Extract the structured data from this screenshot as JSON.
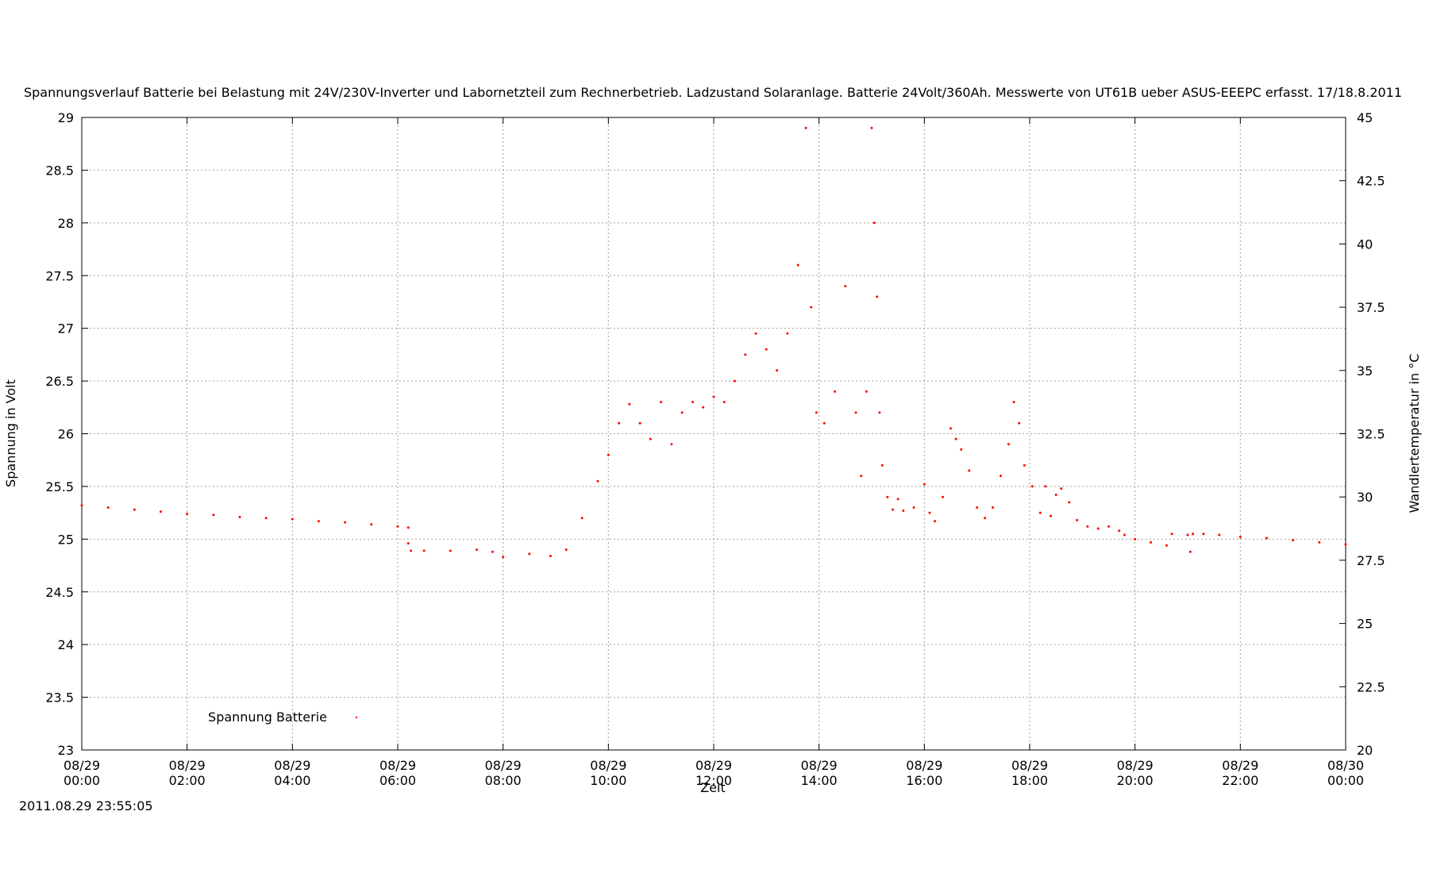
{
  "chart_data": {
    "type": "scatter",
    "title": "Spannungsverlauf Batterie bei Belastung mit 24V/230V-Inverter und Labornetzteil zum Rechnerbetrieb. Ladzustand Solaranlage. Batterie 24Volt/360Ah. Messwerte von UT61B ueber ASUS-EEEPC erfasst. 17/18.8.2011",
    "xlabel": "Zeit",
    "ylabel": "Spannung in Volt",
    "y2label": "Wandlertemperatur in °C",
    "xlim": [
      0,
      24
    ],
    "ylim": [
      23,
      29
    ],
    "y2lim": [
      20,
      45
    ],
    "grid": true,
    "legend_position": "bottom-left",
    "x_ticks": [
      {
        "date": "08/29",
        "time": "00:00"
      },
      {
        "date": "08/29",
        "time": "02:00"
      },
      {
        "date": "08/29",
        "time": "04:00"
      },
      {
        "date": "08/29",
        "time": "06:00"
      },
      {
        "date": "08/29",
        "time": "08:00"
      },
      {
        "date": "08/29",
        "time": "10:00"
      },
      {
        "date": "08/29",
        "time": "12:00"
      },
      {
        "date": "08/29",
        "time": "14:00"
      },
      {
        "date": "08/29",
        "time": "16:00"
      },
      {
        "date": "08/29",
        "time": "18:00"
      },
      {
        "date": "08/29",
        "time": "20:00"
      },
      {
        "date": "08/29",
        "time": "22:00"
      },
      {
        "date": "08/30",
        "time": "00:00"
      }
    ],
    "y_ticks": [
      "23",
      "23.5",
      "24",
      "24.5",
      "25",
      "25.5",
      "26",
      "26.5",
      "27",
      "27.5",
      "28",
      "28.5",
      "29"
    ],
    "y2_ticks": [
      "20",
      "22.5",
      "25",
      "27.5",
      "30",
      "32.5",
      "35",
      "37.5",
      "40",
      "42.5",
      "45"
    ],
    "series": [
      {
        "name": "Spannung Batterie",
        "color": "#ff0000",
        "x": [
          0.0,
          0.5,
          1.0,
          1.5,
          2.0,
          2.5,
          3.0,
          3.5,
          4.0,
          4.5,
          5.0,
          5.5,
          6.0,
          6.2,
          6.2,
          6.25,
          6.5,
          7.0,
          7.5,
          7.8,
          8.0,
          8.5,
          8.9,
          9.2,
          9.5,
          9.8,
          10.0,
          10.2,
          10.4,
          10.6,
          10.8,
          11.0,
          11.2,
          11.4,
          11.6,
          11.8,
          12.0,
          12.2,
          12.4,
          12.6,
          12.8,
          13.0,
          13.2,
          13.4,
          13.6,
          13.75,
          13.85,
          13.95,
          14.1,
          14.3,
          14.5,
          14.7,
          14.8,
          14.9,
          15.0,
          15.05,
          15.1,
          15.15,
          15.2,
          15.3,
          15.4,
          15.5,
          15.6,
          15.8,
          16.0,
          16.1,
          16.2,
          16.35,
          16.5,
          16.6,
          16.7,
          16.85,
          17.0,
          17.15,
          17.3,
          17.45,
          17.6,
          17.7,
          17.8,
          17.9,
          18.05,
          18.2,
          18.3,
          18.4,
          18.5,
          18.6,
          18.75,
          18.9,
          19.1,
          19.3,
          19.5,
          19.7,
          19.8,
          20.0,
          20.3,
          20.6,
          20.7,
          21.0,
          21.05,
          21.1,
          21.3,
          21.6,
          22.0,
          22.5,
          23.0,
          23.5,
          24.0
        ],
        "y": [
          25.32,
          25.3,
          25.28,
          25.26,
          25.24,
          25.23,
          25.21,
          25.2,
          25.19,
          25.17,
          25.16,
          25.14,
          25.12,
          25.11,
          24.96,
          24.89,
          24.89,
          24.89,
          24.9,
          24.88,
          24.83,
          24.86,
          24.84,
          24.9,
          25.2,
          25.55,
          25.8,
          26.1,
          26.28,
          26.1,
          25.95,
          26.3,
          25.9,
          26.2,
          26.3,
          26.25,
          26.35,
          26.3,
          26.5,
          26.75,
          26.95,
          26.8,
          26.6,
          26.95,
          27.6,
          28.9,
          27.2,
          26.2,
          26.1,
          26.4,
          27.4,
          26.2,
          25.6,
          26.4,
          28.9,
          28.0,
          27.3,
          26.2,
          25.7,
          25.4,
          25.28,
          25.38,
          25.27,
          25.3,
          25.52,
          25.25,
          25.17,
          25.4,
          26.05,
          25.95,
          25.85,
          25.65,
          25.3,
          25.2,
          25.3,
          25.6,
          25.9,
          26.3,
          26.1,
          25.7,
          25.5,
          25.25,
          25.5,
          25.22,
          25.42,
          25.48,
          25.35,
          25.18,
          25.12,
          25.1,
          25.12,
          25.08,
          25.04,
          25.0,
          24.97,
          24.94,
          25.05,
          25.04,
          24.88,
          25.05,
          25.05,
          25.04,
          25.02,
          25.01,
          24.99,
          24.97,
          24.95
        ]
      }
    ],
    "timestamp": "2011.08.29 23:55:05"
  }
}
